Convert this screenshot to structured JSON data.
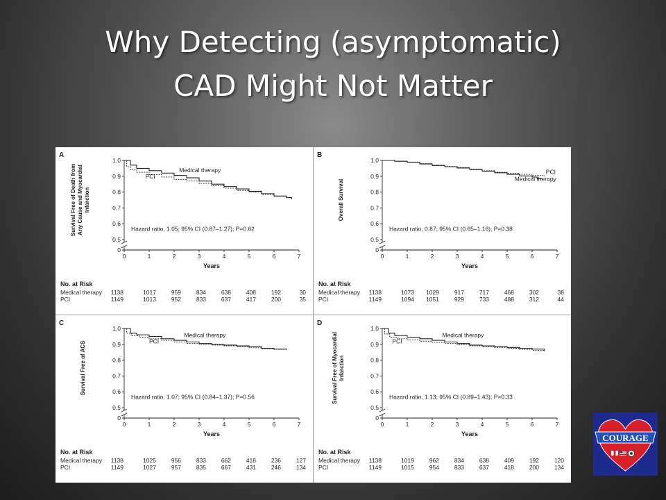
{
  "slide": {
    "title_line1": "Why Detecting (asymptomatic)",
    "title_line2": "CAD Might Not Matter"
  },
  "logo": {
    "text": "COURAGE",
    "icon": "heart-logo-icon"
  },
  "risk_header": "No. at Risk",
  "x_ticks": [
    "0",
    "1",
    "2",
    "3",
    "4",
    "5",
    "6",
    "7"
  ],
  "chart_data": [
    {
      "panel": "A",
      "type": "line",
      "ylabel_lines": [
        "Survival Free of Death from",
        "Any Cause and Myocardial",
        "Infarction"
      ],
      "xlabel": "Years",
      "xlim": [
        0,
        7
      ],
      "ylim": [
        0.5,
        1.0
      ],
      "axis_break": true,
      "y_ticks": [
        "1.0",
        "0.9",
        "0.8",
        "0.7",
        "0.6",
        "0.5",
        "0"
      ],
      "hazard_text": "Hazard ratio, 1.05; 95% CI (0.87–1.27); P=0.62",
      "series": [
        {
          "name": "Medical therapy",
          "style": "solid",
          "x": [
            0,
            0.25,
            0.5,
            1,
            1.5,
            2,
            2.5,
            3,
            3.5,
            4,
            4.5,
            5,
            5.5,
            6,
            6.5,
            6.7
          ],
          "y": [
            1.0,
            0.97,
            0.95,
            0.935,
            0.92,
            0.905,
            0.89,
            0.87,
            0.85,
            0.835,
            0.82,
            0.805,
            0.79,
            0.775,
            0.765,
            0.755
          ]
        },
        {
          "name": "PCI",
          "style": "dashed",
          "x": [
            0,
            0.1,
            0.25,
            0.5,
            1,
            1.5,
            2,
            2.5,
            3,
            3.5,
            4,
            4.5,
            5,
            5.5,
            6,
            6.5,
            6.7
          ],
          "y": [
            1.0,
            0.96,
            0.94,
            0.925,
            0.91,
            0.895,
            0.88,
            0.87,
            0.855,
            0.84,
            0.825,
            0.81,
            0.8,
            0.785,
            0.775,
            0.765,
            0.76
          ]
        }
      ],
      "labels": [
        {
          "text": "Medical therapy",
          "x": 2.2,
          "y": 0.925
        },
        {
          "text": "PCI",
          "x": 0.85,
          "y": 0.885
        }
      ],
      "risk": [
        {
          "group": "Medical therapy",
          "values": [
            "1138",
            "1017",
            "959",
            "834",
            "638",
            "408",
            "192",
            "30"
          ]
        },
        {
          "group": "PCI",
          "values": [
            "1149",
            "1013",
            "952",
            "833",
            "637",
            "417",
            "200",
            "35"
          ]
        }
      ]
    },
    {
      "panel": "B",
      "type": "line",
      "ylabel_lines": [
        "Overall Survival"
      ],
      "xlabel": "Years",
      "xlim": [
        0,
        7
      ],
      "ylim": [
        0.5,
        1.0
      ],
      "axis_break": true,
      "y_ticks": [
        "1.0",
        "0.9",
        "0.8",
        "0.7",
        "0.6",
        "0.5",
        "0"
      ],
      "hazard_text": "Hazard ratio, 0.87; 95% CI (0.65–1.16); P=0.38",
      "series": [
        {
          "name": "PCI",
          "style": "dashed",
          "x": [
            0,
            0.5,
            1,
            1.5,
            2,
            2.5,
            3,
            3.5,
            4,
            4.5,
            5,
            5.5,
            6,
            6.5
          ],
          "y": [
            1.0,
            0.995,
            0.99,
            0.98,
            0.97,
            0.962,
            0.955,
            0.945,
            0.935,
            0.925,
            0.918,
            0.912,
            0.905,
            0.9
          ]
        },
        {
          "name": "Medical therapy",
          "style": "solid",
          "x": [
            0,
            0.5,
            1,
            1.5,
            2,
            2.5,
            3,
            3.5,
            4,
            4.5,
            5,
            5.5,
            6,
            6.2,
            6.4
          ],
          "y": [
            1.0,
            0.995,
            0.988,
            0.978,
            0.968,
            0.96,
            0.952,
            0.942,
            0.932,
            0.922,
            0.912,
            0.902,
            0.895,
            0.885,
            0.88
          ]
        }
      ],
      "labels": [
        {
          "text": "PCI",
          "x": 6.55,
          "y": 0.915
        },
        {
          "text": "Medical therapy",
          "x": 5.3,
          "y": 0.87
        }
      ],
      "risk": [
        {
          "group": "Medical therapy",
          "values": [
            "1138",
            "1073",
            "1029",
            "917",
            "717",
            "468",
            "302",
            "38"
          ]
        },
        {
          "group": "PCI",
          "values": [
            "1149",
            "1094",
            "1051",
            "929",
            "733",
            "488",
            "312",
            "44"
          ]
        }
      ]
    },
    {
      "panel": "C",
      "type": "line",
      "ylabel_lines": [
        "Survival Free of ACS"
      ],
      "xlabel": "Years",
      "xlim": [
        0,
        7
      ],
      "ylim": [
        0.5,
        1.0
      ],
      "axis_break": true,
      "y_ticks": [
        "1.0",
        "0.9",
        "0.8",
        "0.7",
        "0.6",
        "0.5",
        "0"
      ],
      "hazard_text": "Hazard ratio, 1.07; 95% CI (0.84–1.37); P=0.56",
      "series": [
        {
          "name": "Medical therapy",
          "style": "solid",
          "x": [
            0,
            0.25,
            0.5,
            1,
            1.5,
            2,
            2.5,
            3,
            3.5,
            4,
            4.5,
            5,
            5.5,
            6,
            6.5
          ],
          "y": [
            1.0,
            0.97,
            0.96,
            0.95,
            0.935,
            0.925,
            0.915,
            0.905,
            0.9,
            0.895,
            0.89,
            0.885,
            0.875,
            0.87,
            0.865
          ]
        },
        {
          "name": "PCI",
          "style": "dashed",
          "x": [
            0,
            0.1,
            0.3,
            0.6,
            1,
            1.5,
            2,
            2.5,
            3,
            3.5,
            4,
            4.5,
            5,
            5.5,
            6,
            6.5
          ],
          "y": [
            1.0,
            0.97,
            0.955,
            0.945,
            0.935,
            0.925,
            0.915,
            0.905,
            0.9,
            0.895,
            0.89,
            0.885,
            0.878,
            0.872,
            0.868,
            0.865
          ]
        }
      ],
      "labels": [
        {
          "text": "Medical therapy",
          "x": 2.4,
          "y": 0.945
        },
        {
          "text": "PCI",
          "x": 1.0,
          "y": 0.905
        }
      ],
      "risk": [
        {
          "group": "Medical therapy",
          "values": [
            "1138",
            "1025",
            "956",
            "833",
            "662",
            "418",
            "236",
            "127"
          ]
        },
        {
          "group": "PCI",
          "values": [
            "1149",
            "1027",
            "957",
            "835",
            "667",
            "431",
            "246",
            "134"
          ]
        }
      ]
    },
    {
      "panel": "D",
      "type": "line",
      "ylabel_lines": [
        "Survival Free of Myocardial",
        "Infarction"
      ],
      "xlabel": "Years",
      "xlim": [
        0,
        7
      ],
      "ylim": [
        0.5,
        1.0
      ],
      "axis_break": true,
      "y_ticks": [
        "1.0",
        "0.9",
        "0.8",
        "0.7",
        "0.6",
        "0.5",
        "0"
      ],
      "hazard_text": "Hazard ratio, 1.13; 95% CI (0.89–1.43); P=0.33",
      "series": [
        {
          "name": "Medical therapy",
          "style": "solid",
          "x": [
            0,
            0.25,
            0.5,
            1,
            1.5,
            2,
            2.5,
            3,
            3.5,
            4,
            4.5,
            5,
            5.5,
            6,
            6.5
          ],
          "y": [
            1.0,
            0.97,
            0.955,
            0.945,
            0.935,
            0.925,
            0.915,
            0.905,
            0.895,
            0.89,
            0.885,
            0.88,
            0.875,
            0.87,
            0.86
          ]
        },
        {
          "name": "PCI",
          "style": "dashed",
          "x": [
            0,
            0.1,
            0.3,
            0.6,
            1,
            1.5,
            2,
            2.5,
            3,
            3.5,
            4,
            4.5,
            5,
            5.5,
            6,
            6.5
          ],
          "y": [
            1.0,
            0.965,
            0.945,
            0.935,
            0.928,
            0.92,
            0.912,
            0.905,
            0.898,
            0.89,
            0.885,
            0.88,
            0.875,
            0.868,
            0.862,
            0.855
          ]
        }
      ],
      "labels": [
        {
          "text": "Medical therapy",
          "x": 2.4,
          "y": 0.945
        },
        {
          "text": "PCI",
          "x": 0.4,
          "y": 0.905
        }
      ],
      "risk": [
        {
          "group": "Medical therapy",
          "values": [
            "1138",
            "1019",
            "962",
            "834",
            "638",
            "409",
            "192",
            "120"
          ]
        },
        {
          "group": "PCI",
          "values": [
            "1149",
            "1015",
            "954",
            "833",
            "637",
            "418",
            "200",
            "134"
          ]
        }
      ]
    }
  ]
}
